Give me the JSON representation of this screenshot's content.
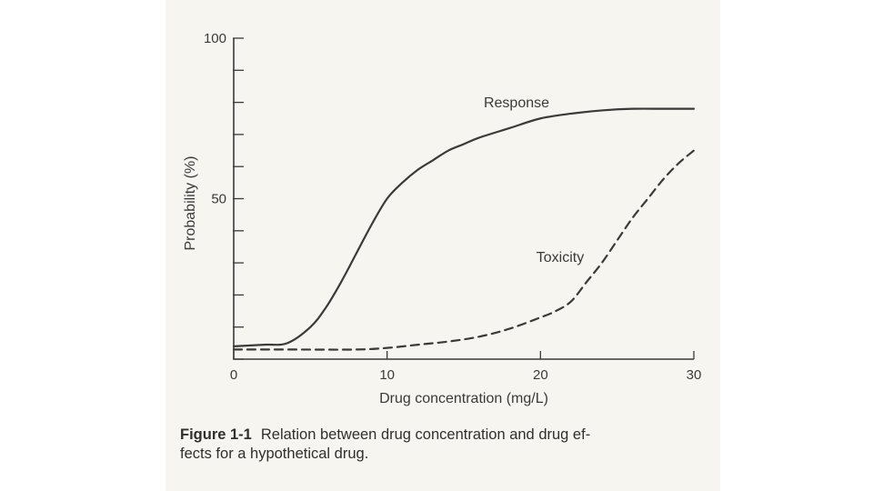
{
  "chart_data": {
    "type": "line",
    "title": "",
    "xlabel": "Drug concentration (mg/L)",
    "ylabel": "Probability (%)",
    "xlim": [
      0,
      30
    ],
    "ylim": [
      0,
      100
    ],
    "xticks": [
      "0",
      "10",
      "20",
      "30"
    ],
    "yticks": [
      "50",
      "100"
    ],
    "grid": false,
    "series": [
      {
        "name": "Response",
        "style": "solid",
        "color": "#3a3a3a",
        "x": [
          0,
          2,
          3.5,
          5,
          6,
          7,
          8,
          9,
          10,
          11,
          12,
          13,
          14,
          15,
          16,
          18,
          20,
          22,
          24,
          26,
          28,
          30
        ],
        "y": [
          4,
          4.5,
          5,
          10,
          16,
          24,
          33,
          42,
          50,
          55,
          59,
          62,
          65,
          67,
          69,
          72,
          75,
          76.5,
          77.5,
          78,
          78,
          78
        ]
      },
      {
        "name": "Toxicity",
        "style": "dashed",
        "color": "#3a3a3a",
        "x": [
          0,
          4,
          8,
          10,
          12,
          14,
          16,
          18,
          20,
          21,
          22,
          23,
          24,
          25,
          26,
          27,
          28,
          29,
          30
        ],
        "y": [
          3,
          3,
          3,
          3.5,
          4.5,
          5.5,
          7,
          9.5,
          13,
          15,
          18,
          24,
          30,
          37,
          44,
          50,
          56,
          61,
          65
        ]
      }
    ],
    "annotations": [
      "Response",
      "Toxicity"
    ]
  },
  "caption": {
    "label": "Figure 1-1",
    "line1": "Relation between drug concentration and drug ef-",
    "line2": "fects for a hypothetical drug."
  }
}
